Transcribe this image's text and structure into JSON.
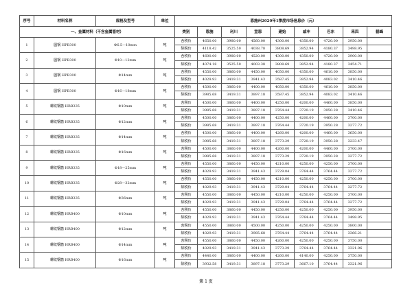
{
  "header": {
    "no": "序号",
    "name": "材料名称",
    "spec": "规格及型号",
    "unit": "单位",
    "title": "恩施州2020年1季度市场信息价（元）"
  },
  "section": "一、金属材料（不含金属管材）",
  "subheader": [
    "类别",
    "恩施",
    "利川",
    "宣恩",
    "建始",
    "咸丰",
    "巴东",
    "来凤",
    "鹤峰"
  ],
  "price_types": [
    "含税价",
    "除税价"
  ],
  "rows": [
    {
      "no": "1",
      "name": "圆钢 HPB300",
      "spec": "Φ6.5—10mm",
      "unit": "吨",
      "tax": [
        "4650.00",
        "3980.00",
        "4560.00",
        "4300.00",
        "4350.00",
        "4720.00",
        "3950.00",
        ""
      ],
      "notax": [
        "4118.42",
        "3525.50",
        "4038.78",
        "3808.69",
        "3852.94",
        "4180.37",
        "3498.95",
        ""
      ]
    },
    {
      "no": "2",
      "name": "圆钢 HPB300",
      "spec": "Φ10—12mm",
      "unit": "吨",
      "tax": [
        "4600.00",
        "3980.00",
        "4520.00",
        "4300.00",
        "4350.00",
        "4720.00",
        "3900.00",
        ""
      ],
      "notax": [
        "4074.18",
        "3525.50",
        "4003.38",
        "3808.69",
        "3852.94",
        "4180.37",
        "3454.71",
        ""
      ]
    },
    {
      "no": "3",
      "name": "圆钢 HPB300",
      "spec": "Φ14mm",
      "unit": "吨",
      "tax": [
        "4550.00",
        "3860.00",
        "4450.00",
        "4050.00",
        "4350.00",
        "4610.00",
        "3850.00",
        ""
      ],
      "notax": [
        "4029.93",
        "3419.31",
        "3941.43",
        "3587.45",
        "3852.94",
        "4083.02",
        "3410.46",
        ""
      ]
    },
    {
      "no": "4",
      "name": "圆钢 HPB300",
      "spec": "Φ16—18mm",
      "unit": "吨",
      "tax": [
        "4500.00",
        "3860.00",
        "4400.00",
        "4050.00",
        "4350.00",
        "4610.00",
        "3850.00",
        ""
      ],
      "notax": [
        "3985.68",
        "3419.31",
        "3897.18",
        "3587.45",
        "3852.94",
        "4083.02",
        "3410.46",
        ""
      ]
    },
    {
      "no": "5",
      "name": "螺纹钢筋 HRB335",
      "spec": "Φ10mm",
      "unit": "吨",
      "tax": [
        "4500.00",
        "3860.00",
        "4400.00",
        "4250.00",
        "4200.00",
        "4460.00",
        "3850.00",
        ""
      ],
      "notax": [
        "3985.68",
        "3419.31",
        "3897.18",
        "3764.44",
        "3720.19",
        "3950.28",
        "3410.46",
        ""
      ]
    },
    {
      "no": "6",
      "name": "螺纹钢筋 HRB335",
      "spec": "Φ12mm",
      "unit": "吨",
      "tax": [
        "4500.00",
        "3860.00",
        "4400.00",
        "4250.00",
        "4200.00",
        "4460.00",
        "3700.00",
        ""
      ],
      "notax": [
        "3985.68",
        "3419.31",
        "3897.18",
        "3764.44",
        "3720.19",
        "3950.28",
        "3277.72",
        ""
      ]
    },
    {
      "no": "7",
      "name": "螺纹钢筋 HRB335",
      "spec": "Φ14mm",
      "unit": "吨",
      "tax": [
        "4500.00",
        "3860.00",
        "4400.00",
        "4260.00",
        "4200.00",
        "4460.00",
        "3650.00",
        ""
      ],
      "notax": [
        "3985.68",
        "3419.31",
        "3897.18",
        "3773.29",
        "3720.19",
        "3950.28",
        "3233.47",
        ""
      ]
    },
    {
      "no": "8",
      "name": "螺纹钢筋 HRB335",
      "spec": "Φ16mm",
      "unit": "吨",
      "tax": [
        "4500.00",
        "3860.00",
        "4400.00",
        "4260.00",
        "4200.00",
        "4460.00",
        "3700.00",
        ""
      ],
      "notax": [
        "3985.68",
        "3419.31",
        "3897.18",
        "3773.29",
        "3720.19",
        "3950.28",
        "3277.72",
        ""
      ]
    },
    {
      "no": "9",
      "name": "螺纹钢筋 HRB335",
      "spec": "Φ18—25mm",
      "unit": "吨",
      "tax": [
        "4550.00",
        "3860.00",
        "4450.00",
        "4210.00",
        "4250.00",
        "4250.00",
        "3700.00",
        ""
      ],
      "notax": [
        "4029.93",
        "3419.31",
        "3941.43",
        "3729.04",
        "3764.44",
        "3764.44",
        "3277.72",
        ""
      ]
    },
    {
      "no": "10",
      "name": "螺纹钢筋 HRB335",
      "spec": "Φ28—32mm",
      "unit": "吨",
      "tax": [
        "4550.00",
        "3860.00",
        "4450.00",
        "4210.00",
        "4250.00",
        "4250.00",
        "3700.00",
        ""
      ],
      "notax": [
        "4029.93",
        "3419.31",
        "3941.43",
        "3729.04",
        "3764.44",
        "3764.44",
        "3277.72",
        ""
      ]
    },
    {
      "no": "11",
      "name": "螺纹钢筋 HRB335",
      "spec": "Φ36mm",
      "unit": "吨",
      "tax": [
        "4550.00",
        "3860.00",
        "4450.00",
        "4210.00",
        "4250.00",
        "4250.00",
        "3700.00",
        ""
      ],
      "notax": [
        "4029.93",
        "3419.31",
        "3941.43",
        "3729.04",
        "3764.44",
        "3764.44",
        "3277.72",
        ""
      ]
    },
    {
      "no": "12",
      "name": "螺纹钢筋 HRB400",
      "spec": "Φ10mm",
      "unit": "吨",
      "tax": [
        "4550.00",
        "3860.00",
        "4450.00",
        "4250.00",
        "4250.00",
        "4250.00",
        "3950.00",
        ""
      ],
      "notax": [
        "4029.93",
        "3419.31",
        "3941.43",
        "3764.44",
        "3764.44",
        "3764.44",
        "3498.95",
        ""
      ]
    },
    {
      "no": "13",
      "name": "螺纹钢筋 HRB400",
      "spec": "Φ12mm",
      "unit": "吨",
      "tax": [
        "4550.00",
        "3860.00",
        "4500.00",
        "4250.00",
        "4250.00",
        "4250.00",
        "3800.00",
        ""
      ],
      "notax": [
        "4029.93",
        "3419.31",
        "3985.68",
        "3764.44",
        "3764.44",
        "3764.44",
        "3366.21",
        ""
      ]
    },
    {
      "no": "14",
      "name": "螺纹钢筋 HRB400",
      "spec": "Φ14mm",
      "unit": "吨",
      "tax": [
        "4550.00",
        "3860.00",
        "4450.00",
        "4260.00",
        "4250.00",
        "4250.00",
        "3750.00",
        ""
      ],
      "notax": [
        "4029.93",
        "3419.31",
        "3941.43",
        "3773.29",
        "3764.44",
        "3764.44",
        "3321.96",
        ""
      ]
    },
    {
      "no": "15",
      "name": "螺纹钢筋 HRB400",
      "spec": "Φ16mm",
      "unit": "吨",
      "tax": [
        "4440.00",
        "3860.00",
        "4400.00",
        "4260.00",
        "4140.00",
        "4250.00",
        "3750.00",
        ""
      ],
      "notax": [
        "3932.58",
        "3419.31",
        "3897.18",
        "3773.29",
        "3667.10",
        "3764.44",
        "3321.96",
        ""
      ]
    }
  ],
  "footer": "第 1 页"
}
